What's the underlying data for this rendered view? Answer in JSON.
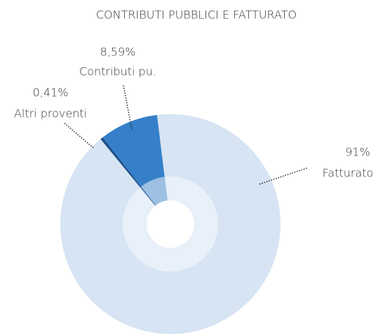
{
  "chart_data": {
    "type": "pie",
    "title": "CONTRIBUTI PUBBLICI E FATTURATO",
    "categories": [
      "Fatturato",
      "Altri proventi",
      "Contributi pu."
    ],
    "values": [
      91,
      0.41,
      8.59
    ],
    "value_labels": [
      "91%",
      "0,41%",
      "8,59%"
    ],
    "colors": [
      "#d6e4f3",
      "#1f4e8a",
      "#3580c8"
    ],
    "inner_colors": [
      "#e8f0f9",
      "#4f74a8",
      "#9dc0e4"
    ]
  }
}
